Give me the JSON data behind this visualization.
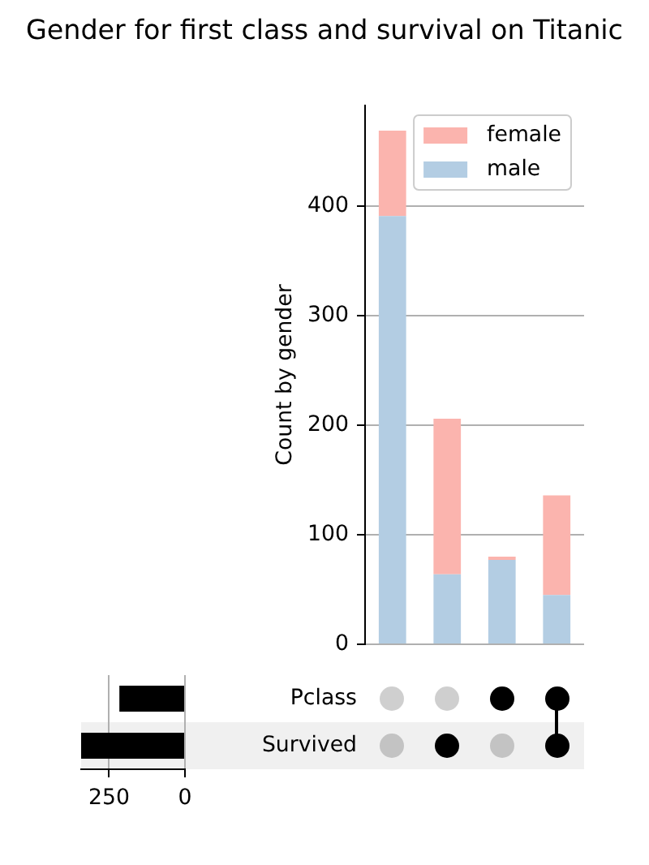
{
  "chart_data": [
    {
      "type": "bar",
      "title": "Gender for first class and survival on Titanic",
      "ylabel": "Count by gender",
      "categories": [
        null,
        null,
        null,
        null
      ],
      "series": [
        {
          "name": "male",
          "color": "#b3cde3",
          "values": [
            391,
            64,
            77,
            45
          ]
        },
        {
          "name": "female",
          "color": "#fbb4ae",
          "values": [
            78,
            142,
            3,
            91
          ]
        }
      ],
      "stacked": true,
      "ylim": [
        0,
        492
      ],
      "yticks": [
        0,
        100,
        200,
        300,
        400
      ],
      "grid": "y",
      "legend": "top right",
      "tick_labels": "y"
    },
    {
      "type": "bar",
      "orientation": "horizontal",
      "categories": [
        "Pclass",
        "Survived"
      ],
      "values": [
        216,
        342
      ],
      "color": "#000000",
      "xlim": [
        342,
        0
      ],
      "xticks": [
        250,
        0
      ],
      "grid": "x",
      "bands": [
        {
          "axis": "y",
          "from": "Survived",
          "to": "Survived",
          "color": "#f0f0f0"
        }
      ]
    }
  ]
}
